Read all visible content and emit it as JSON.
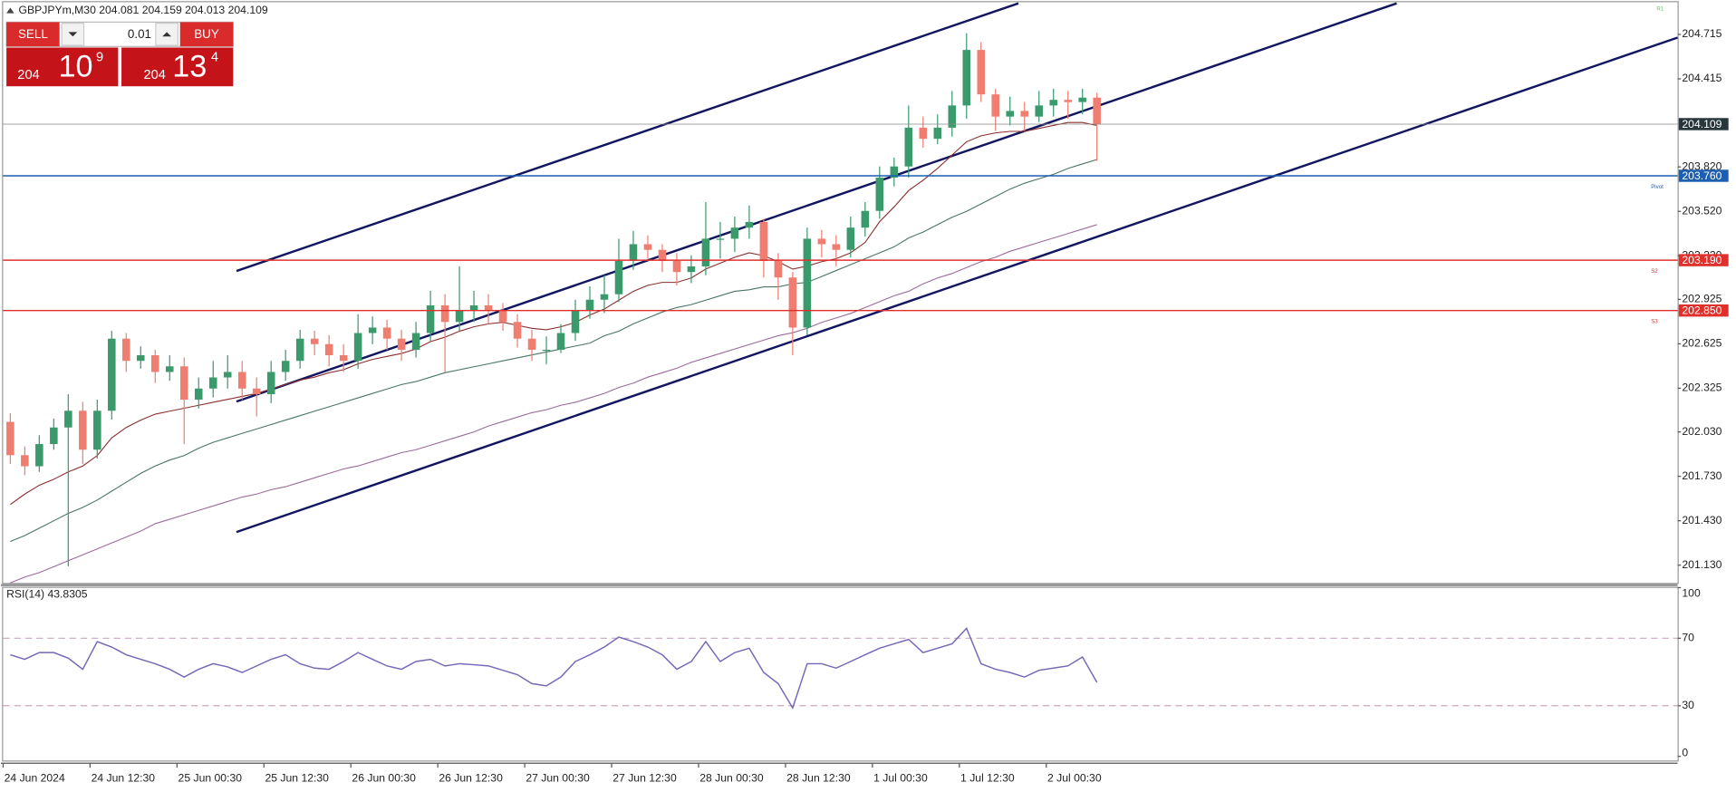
{
  "header": {
    "symbol": "GBPJPYm,M30",
    "open": 204.081,
    "high": 204.159,
    "low": 204.013,
    "close": 204.109
  },
  "trade_panel": {
    "sell": "SELL",
    "buy": "BUY",
    "volume": "0.01",
    "bid_big": "204",
    "bid_pips": "10",
    "bid_point": "9",
    "ask_big": "204",
    "ask_pips": "13",
    "ask_point": "4"
  },
  "chart_data": [
    {
      "type": "candlestick",
      "categories": [
        "24 Jun 2024",
        null,
        null,
        null,
        null,
        null,
        "24 Jun 12:30",
        null,
        null,
        null,
        null,
        null,
        "25 Jun 00:30",
        null,
        null,
        null,
        null,
        null,
        "25 Jun 12:30",
        null,
        null,
        null,
        null,
        null,
        "26 Jun 00:30",
        null,
        null,
        null,
        null,
        null,
        "26 Jun 12:30",
        null,
        null,
        null,
        null,
        null,
        "27 Jun 00:30",
        null,
        null,
        null,
        null,
        null,
        "27 Jun 12:30",
        null,
        null,
        null,
        null,
        null,
        "28 Jun 00:30",
        null,
        null,
        null,
        null,
        null,
        "28 Jun 12:30",
        null,
        null,
        null,
        null,
        null,
        "1 Jul 00:30",
        null,
        null,
        null,
        null,
        null,
        "1 Jul 12:30",
        null,
        null,
        null,
        null,
        null,
        "2 Jul 00:30",
        null,
        null,
        null
      ],
      "open": [
        202.098,
        201.873,
        201.798,
        201.948,
        202.06,
        202.173,
        201.91,
        202.173,
        202.66,
        202.51,
        202.548,
        202.435,
        202.473,
        202.248,
        202.323,
        202.398,
        202.435,
        202.323,
        202.285,
        202.435,
        202.51,
        202.66,
        202.623,
        202.548,
        202.51,
        202.698,
        202.735,
        202.66,
        202.585,
        202.698,
        202.885,
        202.773,
        202.848,
        202.885,
        202.848,
        202.773,
        202.66,
        202.585,
        202.585,
        202.698,
        202.848,
        202.923,
        202.96,
        203.185,
        203.298,
        203.26,
        203.185,
        203.11,
        203.148,
        203.335,
        203.335,
        203.41,
        203.448,
        203.185,
        203.073,
        202.735,
        203.335,
        203.298,
        203.26,
        203.41,
        203.523,
        203.748,
        203.823,
        204.085,
        204.01,
        204.085,
        204.235,
        204.61,
        204.31,
        204.16,
        204.198,
        204.16,
        204.235,
        204.273,
        204.258,
        204.288
      ],
      "high": [
        202.157,
        201.932,
        202.008,
        202.12,
        202.285,
        202.233,
        202.248,
        202.713,
        202.698,
        202.608,
        202.585,
        202.548,
        202.533,
        202.398,
        202.51,
        202.548,
        202.51,
        202.398,
        202.51,
        202.585,
        202.72,
        202.713,
        202.683,
        202.623,
        202.825,
        202.81,
        202.788,
        202.72,
        202.773,
        202.983,
        202.96,
        203.148,
        202.983,
        202.96,
        202.9,
        202.825,
        202.72,
        202.675,
        202.758,
        202.923,
        203.013,
        203.088,
        203.335,
        203.388,
        203.358,
        203.298,
        203.238,
        203.223,
        203.583,
        203.448,
        203.485,
        203.56,
        203.47,
        203.238,
        203.11,
        203.41,
        203.395,
        203.358,
        203.485,
        203.583,
        203.823,
        203.883,
        204.235,
        204.16,
        204.175,
        204.333,
        204.723,
        204.662,
        204.348,
        204.295,
        204.258,
        204.333,
        204.348,
        204.333,
        204.348,
        204.32
      ],
      "low": [
        201.813,
        201.738,
        201.76,
        201.91,
        201.123,
        201.813,
        201.85,
        202.113,
        202.435,
        202.458,
        202.36,
        202.375,
        201.948,
        202.188,
        202.263,
        202.323,
        202.248,
        202.135,
        202.225,
        202.375,
        202.458,
        202.548,
        202.473,
        202.435,
        202.458,
        202.623,
        202.585,
        202.51,
        202.533,
        202.645,
        202.435,
        202.713,
        202.773,
        202.758,
        202.713,
        202.6,
        202.51,
        202.488,
        202.563,
        202.645,
        202.795,
        202.833,
        202.908,
        203.125,
        203.2,
        203.11,
        203.02,
        203.035,
        203.088,
        203.2,
        203.245,
        203.335,
        203.073,
        202.923,
        202.548,
        202.683,
        203.208,
        203.148,
        203.208,
        203.35,
        203.47,
        203.688,
        203.748,
        203.95,
        203.973,
        204.025,
        204.145,
        204.258,
        204.063,
        204.1,
        204.063,
        204.123,
        204.16,
        204.145,
        204.175,
        203.86
      ],
      "close": [
        201.873,
        201.798,
        201.948,
        202.06,
        202.173,
        201.91,
        202.173,
        202.66,
        202.51,
        202.548,
        202.435,
        202.473,
        202.248,
        202.323,
        202.398,
        202.435,
        202.323,
        202.285,
        202.435,
        202.51,
        202.66,
        202.623,
        202.548,
        202.51,
        202.698,
        202.735,
        202.66,
        202.585,
        202.698,
        202.885,
        202.773,
        202.848,
        202.885,
        202.848,
        202.773,
        202.66,
        202.585,
        202.585,
        202.698,
        202.848,
        202.923,
        202.96,
        203.185,
        203.298,
        203.26,
        203.185,
        203.11,
        203.148,
        203.335,
        203.335,
        203.41,
        203.448,
        203.185,
        203.073,
        202.735,
        203.335,
        203.298,
        203.26,
        203.41,
        203.523,
        203.748,
        203.823,
        204.085,
        204.01,
        204.085,
        204.235,
        204.61,
        204.31,
        204.16,
        204.198,
        204.16,
        204.235,
        204.273,
        204.258,
        204.288,
        204.109
      ],
      "up_color": "#3a9a6c",
      "down_color": "#ef7d70",
      "series": [
        {
          "color": "#8b2e2e",
          "values": [
            201.54,
            201.61,
            201.67,
            201.71,
            201.76,
            201.8,
            201.87,
            201.99,
            202.06,
            202.11,
            202.15,
            202.17,
            202.19,
            202.21,
            202.23,
            202.25,
            202.27,
            202.29,
            202.32,
            202.35,
            202.38,
            202.4,
            202.43,
            202.45,
            202.49,
            202.52,
            202.54,
            202.56,
            202.59,
            202.64,
            202.67,
            202.71,
            202.74,
            202.76,
            202.77,
            202.75,
            202.73,
            202.72,
            202.74,
            202.77,
            202.82,
            202.86,
            202.92,
            202.98,
            203.02,
            203.04,
            203.04,
            203.07,
            203.13,
            203.17,
            203.21,
            203.24,
            203.22,
            203.18,
            203.13,
            203.15,
            203.18,
            203.2,
            203.24,
            203.31,
            203.45,
            203.55,
            203.66,
            203.73,
            203.81,
            203.9,
            203.99,
            204.03,
            204.05,
            204.06,
            204.06,
            204.08,
            204.1,
            204.12,
            204.12,
            204.1
          ]
        },
        {
          "color": "#4a7563",
          "values": [
            201.29,
            201.33,
            201.38,
            201.43,
            201.48,
            201.52,
            201.57,
            201.63,
            201.69,
            201.75,
            201.8,
            201.84,
            201.87,
            201.92,
            201.96,
            201.99,
            202.02,
            202.05,
            202.08,
            202.11,
            202.14,
            202.17,
            202.2,
            202.23,
            202.26,
            202.29,
            202.32,
            202.35,
            202.37,
            202.4,
            202.43,
            202.45,
            202.47,
            202.49,
            202.51,
            202.53,
            202.55,
            202.57,
            202.59,
            202.61,
            202.63,
            202.68,
            202.71,
            202.76,
            202.8,
            202.84,
            202.87,
            202.89,
            202.92,
            202.95,
            202.98,
            202.99,
            203.01,
            203.01,
            203.03,
            203.04,
            203.08,
            203.12,
            203.16,
            203.2,
            203.24,
            203.28,
            203.34,
            203.38,
            203.43,
            203.48,
            203.52,
            203.57,
            203.62,
            203.67,
            203.71,
            203.74,
            203.77,
            203.81,
            203.84,
            203.87
          ]
        },
        {
          "color": "#9b6b9b",
          "values": [
            201.01,
            201.05,
            201.08,
            201.12,
            201.16,
            201.2,
            201.24,
            201.28,
            201.32,
            201.36,
            201.41,
            201.44,
            201.47,
            201.5,
            201.53,
            201.56,
            201.59,
            201.61,
            201.64,
            201.66,
            201.69,
            201.72,
            201.75,
            201.78,
            201.8,
            201.83,
            201.86,
            201.89,
            201.91,
            201.94,
            201.97,
            202.0,
            202.03,
            202.07,
            202.1,
            202.13,
            202.16,
            202.18,
            202.21,
            202.23,
            202.26,
            202.29,
            202.33,
            202.36,
            202.4,
            202.43,
            202.46,
            202.5,
            202.53,
            202.56,
            202.59,
            202.62,
            202.65,
            202.68,
            202.7,
            202.73,
            202.77,
            202.8,
            202.83,
            202.87,
            202.91,
            202.95,
            202.98,
            203.03,
            203.07,
            203.1,
            203.14,
            203.18,
            203.21,
            203.25,
            203.28,
            203.31,
            203.34,
            203.37,
            203.4,
            203.43
          ]
        }
      ],
      "levels": [
        {
          "name": "Pivot",
          "value": 203.76,
          "label": "203.760",
          "color": "#1c5fb0"
        },
        {
          "name": "S2",
          "value": 203.19,
          "label": "203.190",
          "color": "#e0302c"
        },
        {
          "name": "S3",
          "value": 202.85,
          "label": "202.850",
          "color": "#e0302c"
        }
      ],
      "annotations": [
        {
          "text": "R1",
          "color": "#6cbf6c"
        }
      ],
      "ylim": [
        201.01,
        204.925
      ],
      "yticks": [
        204.715,
        204.415,
        {
          "value": 203.82,
          "label": "203.820"
        },
        {
          "value": 203.52,
          "label": "203.520"
        },
        {
          "value": 203.22,
          "label": "203.220"
        },
        202.925,
        202.625,
        202.325,
        {
          "value": 202.03,
          "label": "202.030"
        },
        {
          "value": 201.73,
          "label": "201.730"
        },
        {
          "value": 201.43,
          "label": "201.430"
        },
        {
          "value": 201.13,
          "label": "201.130"
        }
      ]
    },
    {
      "type": "line",
      "title": "RSI(14)",
      "series": [
        {
          "color": "#7866b8",
          "values": [
            60.2,
            57.5,
            61.5,
            61.5,
            58.2,
            51.6,
            68.0,
            64.8,
            60.2,
            57.5,
            54.9,
            51.6,
            47.0,
            51.6,
            54.9,
            53.0,
            49.7,
            53.6,
            57.5,
            60.2,
            54.9,
            52.3,
            51.6,
            56.2,
            61.5,
            57.5,
            53.6,
            51.6,
            56.2,
            57.5,
            53.6,
            54.9,
            54.3,
            53.6,
            51.0,
            48.4,
            43.1,
            41.8,
            47.0,
            56.2,
            60.2,
            64.8,
            70.7,
            68.0,
            64.8,
            60.2,
            51.6,
            56.2,
            68.0,
            56.2,
            61.5,
            64.1,
            49.7,
            43.1,
            28.7,
            54.9,
            54.9,
            52.3,
            56.2,
            60.2,
            64.1,
            66.7,
            69.3,
            61.5,
            64.1,
            66.7,
            75.9,
            54.9,
            51.6,
            49.7,
            47.0,
            51.0,
            52.3,
            53.6,
            58.9,
            43.8305
          ]
        }
      ],
      "levels": [
        30,
        70
      ],
      "level_color": "#c9a8c0",
      "ylim": [
        0,
        100
      ],
      "yticks": [
        100,
        70,
        30,
        0
      ]
    }
  ]
}
